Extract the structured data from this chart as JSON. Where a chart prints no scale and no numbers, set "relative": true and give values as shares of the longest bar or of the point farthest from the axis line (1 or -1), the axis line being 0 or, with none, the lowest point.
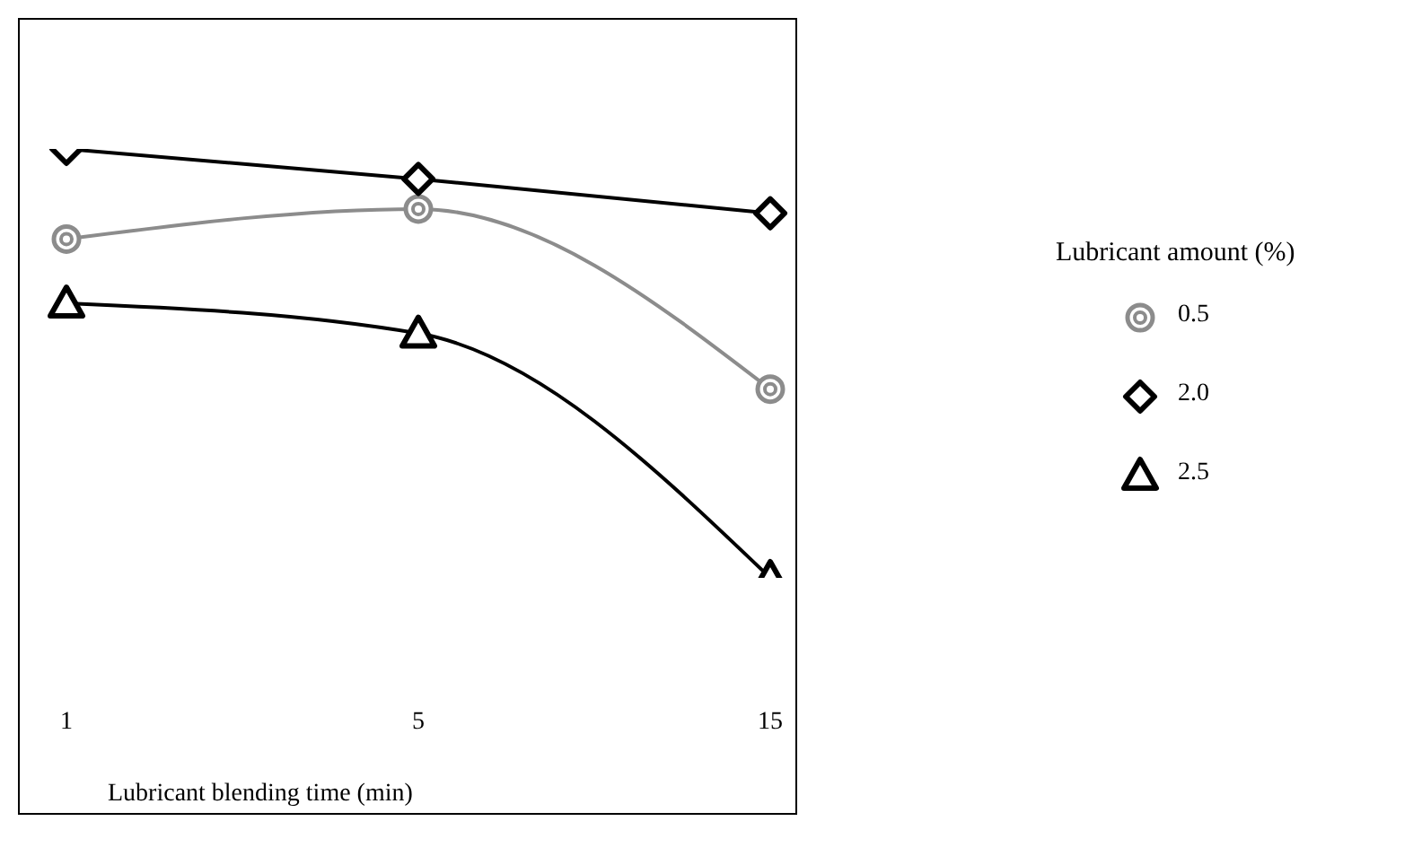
{
  "chart_data": {
    "type": "line",
    "relative": true,
    "xlabel": "Lubricant blending time (min)",
    "legend_title": "Lubricant amount (%)",
    "legend": "right",
    "categories": [
      "1",
      "5",
      "15"
    ],
    "line_style": "solid",
    "series": [
      {
        "name": "0.5",
        "color": "#8c8c8c",
        "marker": "circle",
        "values": [
          0.79,
          0.86,
          0.44
        ]
      },
      {
        "name": "2.0",
        "color": "#000000",
        "marker": "diamond",
        "values": [
          1,
          0.93,
          0.85
        ]
      },
      {
        "name": "2.5",
        "color": "#000000",
        "marker": "triangle",
        "values": [
          0.64,
          0.57,
          0
        ]
      }
    ]
  }
}
